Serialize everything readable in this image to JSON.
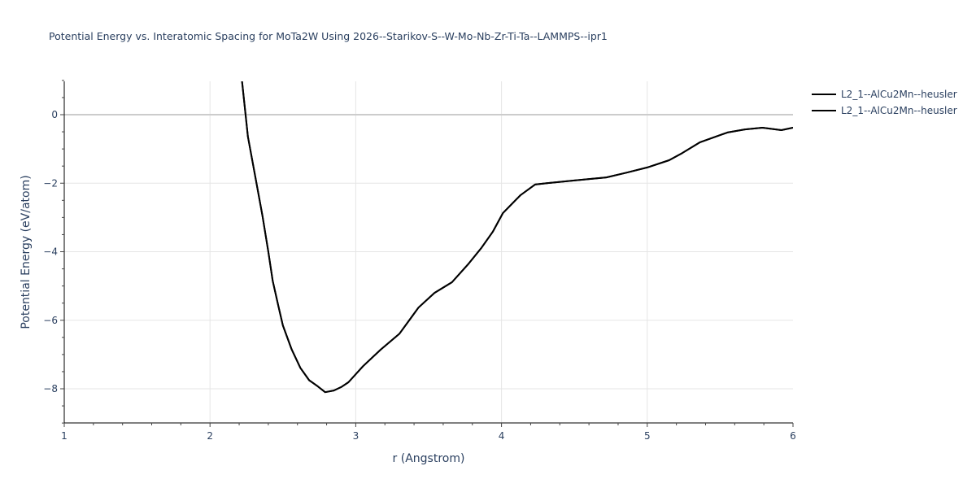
{
  "title": "Potential Energy vs. Interatomic Spacing for MoTa2W Using 2026--Starikov-S--W-Mo-Nb-Zr-Ti-Ta--LAMMPS--ipr1",
  "legend": {
    "items": [
      {
        "label": "L2_1--AlCu2Mn--heusler",
        "color": "#000000"
      },
      {
        "label": "L2_1--AlCu2Mn--heusler",
        "color": "#000000"
      }
    ]
  },
  "axes": {
    "x": {
      "title": "r (Angstrom)",
      "ticks": [
        "1",
        "2",
        "3",
        "4",
        "5",
        "6"
      ]
    },
    "y": {
      "title": "Potential Energy (eV/atom)",
      "ticks": [
        "0",
        "−2",
        "−4",
        "−6",
        "−8"
      ]
    }
  },
  "colors": {
    "line": "#000000",
    "grid": "#e5e5e5",
    "zeroline": "#cccccc",
    "text": "#2a3f5f"
  },
  "chart_data": {
    "type": "line",
    "title": "Potential Energy vs. Interatomic Spacing for MoTa2W Using 2026--Starikov-S--W-Mo-Nb-Zr-Ti-Ta--LAMMPS--ipr1",
    "xlabel": "r (Angstrom)",
    "ylabel": "Potential Energy (eV/atom)",
    "xlim": [
      1,
      6
    ],
    "ylim": [
      -9,
      1
    ],
    "grid": true,
    "legend_position": "top-right outside",
    "series": [
      {
        "name": "L2_1--AlCu2Mn--heusler",
        "x": [
          2.22,
          2.26,
          2.31,
          2.36,
          2.4,
          2.43,
          2.47,
          2.5,
          2.56,
          2.62,
          2.68,
          2.74,
          2.79,
          2.85,
          2.9,
          2.95,
          3.05,
          3.17,
          3.3,
          3.43,
          3.54,
          3.66,
          3.77,
          3.86,
          3.94,
          4.01,
          4.13,
          4.23,
          4.31,
          4.5,
          4.72,
          4.86,
          5.0,
          5.15,
          5.24,
          5.36,
          5.55,
          5.67,
          5.79,
          5.92,
          6.0
        ],
        "y": [
          0.97,
          -0.64,
          -1.8,
          -2.95,
          -4.0,
          -4.85,
          -5.6,
          -6.15,
          -6.85,
          -7.39,
          -7.75,
          -7.93,
          -8.1,
          -8.05,
          -7.95,
          -7.81,
          -7.34,
          -6.86,
          -6.39,
          -5.63,
          -5.2,
          -4.89,
          -4.37,
          -3.9,
          -3.42,
          -2.87,
          -2.35,
          -2.04,
          -2.0,
          -1.92,
          -1.83,
          -1.69,
          -1.54,
          -1.33,
          -1.12,
          -0.81,
          -0.52,
          -0.43,
          -0.38,
          -0.45,
          -0.38
        ]
      },
      {
        "name": "L2_1--AlCu2Mn--heusler",
        "x": [
          2.22,
          2.26,
          2.31,
          2.36,
          2.4,
          2.43,
          2.47,
          2.5,
          2.56,
          2.62,
          2.68,
          2.74,
          2.79,
          2.85,
          2.9,
          2.95,
          3.05,
          3.17,
          3.3,
          3.43,
          3.54,
          3.66,
          3.77,
          3.86,
          3.94,
          4.01,
          4.13,
          4.23,
          4.31,
          4.5,
          4.72,
          4.86,
          5.0,
          5.15,
          5.24,
          5.36,
          5.55,
          5.67,
          5.79,
          5.92,
          6.0
        ],
        "y": [
          0.97,
          -0.64,
          -1.8,
          -2.95,
          -4.0,
          -4.85,
          -5.6,
          -6.15,
          -6.85,
          -7.39,
          -7.75,
          -7.93,
          -8.1,
          -8.05,
          -7.95,
          -7.81,
          -7.34,
          -6.86,
          -6.39,
          -5.63,
          -5.2,
          -4.89,
          -4.37,
          -3.9,
          -3.42,
          -2.87,
          -2.35,
          -2.04,
          -2.0,
          -1.92,
          -1.83,
          -1.69,
          -1.54,
          -1.33,
          -1.12,
          -0.81,
          -0.52,
          -0.43,
          -0.38,
          -0.45,
          -0.38
        ]
      }
    ]
  }
}
